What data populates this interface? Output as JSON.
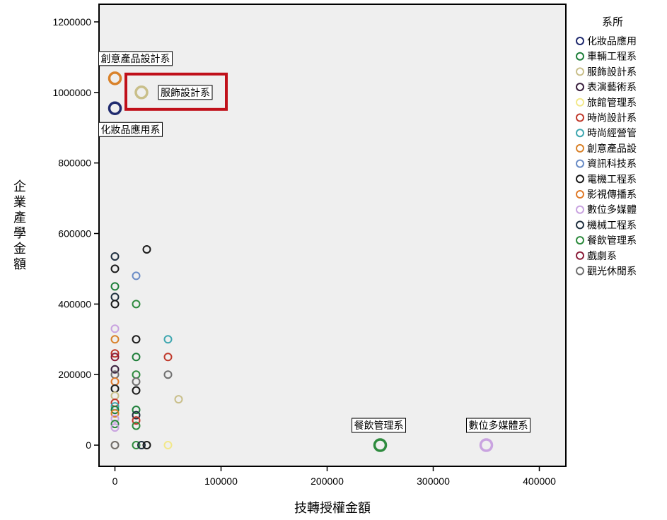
{
  "chart_data": {
    "type": "scatter",
    "xlabel": "技轉授權金額",
    "ylabel": "企業產學金額",
    "xlim": [
      -15000,
      425000
    ],
    "ylim": [
      -60000,
      1250000
    ],
    "x_ticks": [
      0,
      100000,
      200000,
      300000,
      400000
    ],
    "x_tick_labels": [
      "0",
      "100000",
      "200000",
      "300000",
      "400000"
    ],
    "y_ticks": [
      0,
      200000,
      400000,
      600000,
      800000,
      1000000,
      1200000
    ],
    "y_tick_labels": [
      "0",
      "200000",
      "400000",
      "600000",
      "800000",
      "1000000",
      "1200000"
    ],
    "grid": false,
    "legend": {
      "title": "系所",
      "placement": "right",
      "entries": [
        {
          "name": "化妝品應用",
          "color": "#1f2a6e"
        },
        {
          "name": "車輛工程系",
          "color": "#1e7f3a"
        },
        {
          "name": "服飾設計系",
          "color": "#c9bf8a"
        },
        {
          "name": "表演藝術系",
          "color": "#3a1f3e"
        },
        {
          "name": "旅館管理系",
          "color": "#f2e88a"
        },
        {
          "name": "時尚設計系",
          "color": "#c0392b"
        },
        {
          "name": "時尚經營管",
          "color": "#3fa7b0"
        },
        {
          "name": "創意產品設",
          "color": "#d9822b"
        },
        {
          "name": "資訊科技系",
          "color": "#6a8cc6"
        },
        {
          "name": "電機工程系",
          "color": "#1a1a1a"
        },
        {
          "name": "影視傳播系",
          "color": "#e07b2a"
        },
        {
          "name": "數位多媒體",
          "color": "#c9a3e0"
        },
        {
          "name": "機械工程系",
          "color": "#203040"
        },
        {
          "name": "餐飲管理系",
          "color": "#2e8b3e"
        },
        {
          "name": "戲劇系",
          "color": "#8b1e3a"
        },
        {
          "name": "觀光休閒系",
          "color": "#707070"
        }
      ]
    },
    "points": [
      {
        "x": 0,
        "y": 1040000,
        "color": "#d9822b",
        "size": "large"
      },
      {
        "x": 0,
        "y": 955000,
        "color": "#1f2a6e",
        "size": "large"
      },
      {
        "x": 25000,
        "y": 1000000,
        "color": "#c9bf8a",
        "size": "large"
      },
      {
        "x": 250000,
        "y": 0,
        "color": "#2e8b3e",
        "size": "large"
      },
      {
        "x": 350000,
        "y": 0,
        "color": "#c9a3e0",
        "size": "large"
      },
      {
        "x": 30000,
        "y": 555000,
        "color": "#1a1a1a"
      },
      {
        "x": 0,
        "y": 535000,
        "color": "#203040"
      },
      {
        "x": 0,
        "y": 500000,
        "color": "#1a1a1a"
      },
      {
        "x": 20000,
        "y": 480000,
        "color": "#6a8cc6"
      },
      {
        "x": 0,
        "y": 450000,
        "color": "#1e7f3a"
      },
      {
        "x": 0,
        "y": 420000,
        "color": "#203040"
      },
      {
        "x": 0,
        "y": 400000,
        "color": "#1a1a1a"
      },
      {
        "x": 20000,
        "y": 400000,
        "color": "#2e8b3e"
      },
      {
        "x": 0,
        "y": 330000,
        "color": "#c9a3e0"
      },
      {
        "x": 0,
        "y": 300000,
        "color": "#d9822b"
      },
      {
        "x": 20000,
        "y": 300000,
        "color": "#1a1a1a"
      },
      {
        "x": 50000,
        "y": 300000,
        "color": "#3fa7b0"
      },
      {
        "x": 0,
        "y": 260000,
        "color": "#c0392b"
      },
      {
        "x": 0,
        "y": 250000,
        "color": "#8b1e3a"
      },
      {
        "x": 20000,
        "y": 250000,
        "color": "#1e7f3a"
      },
      {
        "x": 50000,
        "y": 250000,
        "color": "#c0392b"
      },
      {
        "x": 0,
        "y": 215000,
        "color": "#3a1f3e"
      },
      {
        "x": 0,
        "y": 200000,
        "color": "#707070"
      },
      {
        "x": 20000,
        "y": 200000,
        "color": "#2e8b3e"
      },
      {
        "x": 50000,
        "y": 200000,
        "color": "#707070"
      },
      {
        "x": 0,
        "y": 180000,
        "color": "#e07b2a"
      },
      {
        "x": 20000,
        "y": 180000,
        "color": "#707070"
      },
      {
        "x": 0,
        "y": 160000,
        "color": "#1a1a1a"
      },
      {
        "x": 20000,
        "y": 155000,
        "color": "#1a1a1a"
      },
      {
        "x": 0,
        "y": 140000,
        "color": "#c9bf8a"
      },
      {
        "x": 60000,
        "y": 130000,
        "color": "#c9bf8a"
      },
      {
        "x": 0,
        "y": 120000,
        "color": "#c0392b"
      },
      {
        "x": 0,
        "y": 110000,
        "color": "#3fa7b0"
      },
      {
        "x": 0,
        "y": 100000,
        "color": "#1e7f3a"
      },
      {
        "x": 20000,
        "y": 100000,
        "color": "#1e7f3a"
      },
      {
        "x": 0,
        "y": 90000,
        "color": "#d9822b"
      },
      {
        "x": 20000,
        "y": 85000,
        "color": "#203040"
      },
      {
        "x": 0,
        "y": 75000,
        "color": "#c9a3e0"
      },
      {
        "x": 20000,
        "y": 70000,
        "color": "#c0392b"
      },
      {
        "x": 0,
        "y": 60000,
        "color": "#2e8b3e"
      },
      {
        "x": 20000,
        "y": 55000,
        "color": "#2e8b3e"
      },
      {
        "x": 0,
        "y": 50000,
        "color": "#c9a3e0"
      },
      {
        "x": 0,
        "y": 0,
        "color": "#d9822b"
      },
      {
        "x": 0,
        "y": 0,
        "color": "#707070"
      },
      {
        "x": 20000,
        "y": 0,
        "color": "#2e8b3e"
      },
      {
        "x": 25000,
        "y": 0,
        "color": "#203040"
      },
      {
        "x": 30000,
        "y": 0,
        "color": "#1a1a1a"
      },
      {
        "x": 50000,
        "y": 0,
        "color": "#f2e88a"
      }
    ],
    "annotations": [
      {
        "text": "創意產品設計系",
        "x": 0,
        "y": 1040000
      },
      {
        "text": "化妝品應用系",
        "x": 0,
        "y": 955000
      },
      {
        "text": "服飾設計系",
        "x": 25000,
        "y": 1000000,
        "highlight": true,
        "highlight_color": "#c0101a"
      },
      {
        "text": "餐飲管理系",
        "x": 250000,
        "y": 0
      },
      {
        "text": "數位多媒體系",
        "x": 350000,
        "y": 0
      }
    ]
  }
}
